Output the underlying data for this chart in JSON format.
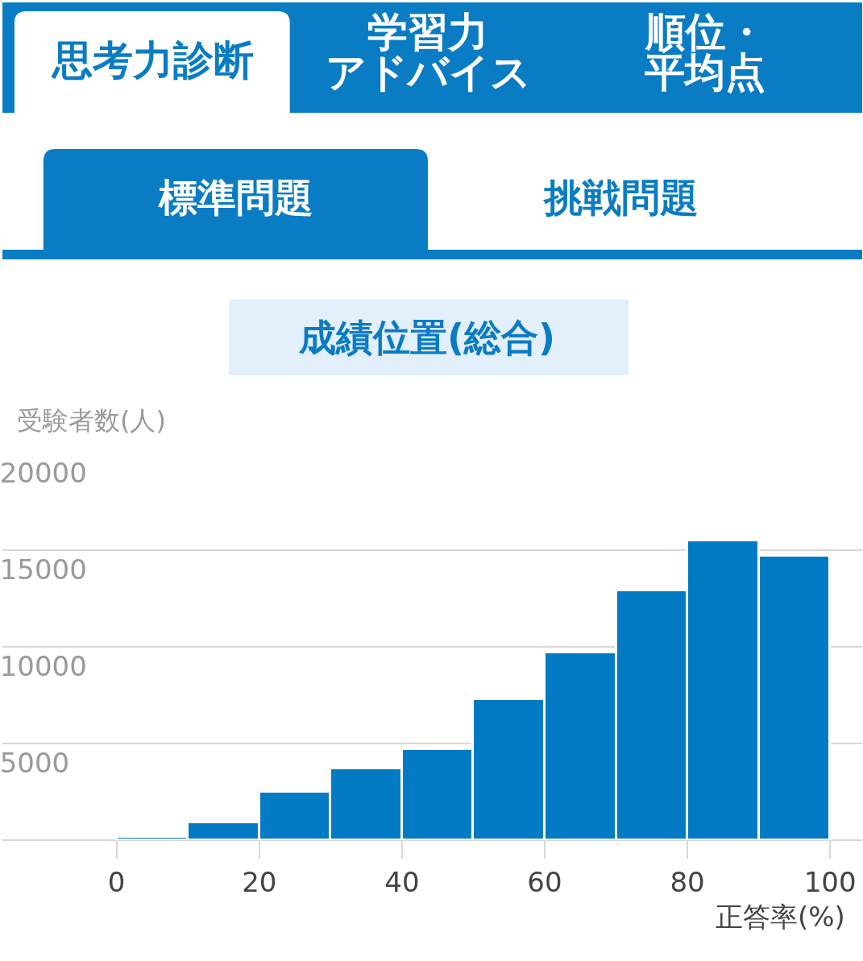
{
  "chart_data": {
    "type": "histogram",
    "title": "成績位置(総合)",
    "ylabel": "受験者数(人)",
    "xlabel": "正答率(%)",
    "bins": [
      0,
      10,
      20,
      30,
      40,
      50,
      60,
      70,
      80,
      90,
      100
    ],
    "values": [
      150,
      900,
      2500,
      3700,
      4700,
      7300,
      9700,
      12900,
      15500,
      14700
    ],
    "color": "#027bc4",
    "xlim": [
      -16,
      104.5
    ],
    "xticks": [
      0,
      20,
      40,
      60,
      80,
      100
    ],
    "ylim": [
      0,
      20000
    ],
    "yticks": [
      {
        "value": 0,
        "label": null
      },
      5000,
      10000,
      15000,
      20000
    ],
    "grid": "y",
    "annotations": [
      "思考力診断",
      "学習力",
      "アドバイス",
      "順位・",
      "平均点",
      "標準問題",
      "挑戦問題"
    ]
  }
}
